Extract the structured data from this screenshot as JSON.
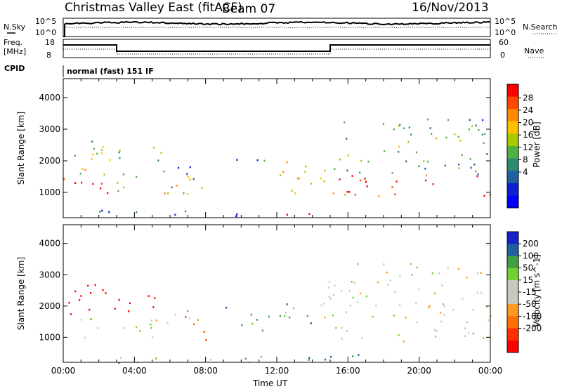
{
  "header": {
    "title": "Christmas Valley East (fitACF)",
    "beam": "Beam 07",
    "date": "16/Nov/2013"
  },
  "top_panels": {
    "noise_label": "N.Sky",
    "noise_ticks": [
      "10^5",
      "10^0"
    ],
    "noise_right_ticks": [
      "10^5",
      "10^0"
    ],
    "noise_right_label": "N.Search",
    "freq_label_1": "Freq.",
    "freq_label_2": "[MHz]",
    "freq_ticks": [
      "18",
      "8"
    ],
    "nave_ticks": [
      "60",
      "0"
    ],
    "nave_label": "Nave",
    "cpid_label": "CPID",
    "cpid_text": "normal (fast) 151 IF"
  },
  "chart_data": [
    {
      "type": "heatmap",
      "panel": "power",
      "ylabel": "Slant Range [km]",
      "ylim": [
        200,
        4600
      ],
      "y_ticks": [
        1000,
        2000,
        3000,
        4000
      ],
      "xlim": [
        0,
        24
      ],
      "colorbar": {
        "label": "Power [dB]",
        "ticks": [
          "28",
          "24",
          "20",
          "16",
          "12",
          "8",
          "4"
        ],
        "colors": [
          "#ff0000",
          "#ff4800",
          "#ff8c00",
          "#ffc000",
          "#a8c800",
          "#50b040",
          "#2e8b72",
          "#2060a0",
          "#1020d0",
          "#0000ff"
        ]
      },
      "regions": [
        {
          "t0": 0.0,
          "t1": 3.0,
          "r0": 850,
          "r1": 1500,
          "level": 0.95
        },
        {
          "t0": 0.0,
          "t1": 2.8,
          "r0": 1500,
          "r1": 2300,
          "level": 0.55
        },
        {
          "t0": 0.3,
          "t1": 5.8,
          "r0": 2000,
          "r1": 2700,
          "level": 0.45
        },
        {
          "t0": 3.0,
          "t1": 7.5,
          "r0": 900,
          "r1": 1600,
          "level": 0.6
        },
        {
          "t0": 5.5,
          "t1": 8.0,
          "r0": 1000,
          "r1": 1900,
          "level": 0.35
        },
        {
          "t0": 9.5,
          "t1": 11.5,
          "r0": 1600,
          "r1": 2100,
          "level": 0.3
        },
        {
          "t0": 11.5,
          "t1": 14.8,
          "r0": 800,
          "r1": 2000,
          "level": 0.6
        },
        {
          "t0": 12.5,
          "t1": 14.2,
          "r0": 200,
          "r1": 600,
          "level": 0.9
        },
        {
          "t0": 14.8,
          "t1": 24.0,
          "r0": 900,
          "r1": 1600,
          "level": 0.95
        },
        {
          "t0": 14.8,
          "t1": 24.0,
          "r0": 1600,
          "r1": 3400,
          "level": 0.4
        },
        {
          "t0": 2.0,
          "t1": 14.0,
          "r0": 250,
          "r1": 450,
          "level": 0.25
        }
      ]
    },
    {
      "type": "heatmap",
      "panel": "velocity",
      "ylabel": "Slant Range [km]",
      "xlabel": "Time UT",
      "ylim": [
        200,
        4600
      ],
      "y_ticks": [
        1000,
        2000,
        3000,
        4000
      ],
      "xlim": [
        0,
        24
      ],
      "x_ticks": [
        "00:00",
        "04:00",
        "08:00",
        "12:00",
        "16:00",
        "20:00",
        "00:00"
      ],
      "colorbar": {
        "label": "Velocity [m s^-1]",
        "ticks": [
          "200",
          "100",
          "50",
          "15",
          "-15",
          "-50",
          "-100",
          "-200"
        ],
        "colors": [
          "#1a20c8",
          "#2060a0",
          "#40a040",
          "#70d030",
          "#c8c8c0",
          "#c8c8c0",
          "#ff9a20",
          "#ff7000",
          "#ff3000",
          "#ff0000"
        ]
      },
      "regions": [
        {
          "t0": 0.0,
          "t1": 6.0,
          "r0": 1000,
          "r1": 1700,
          "level": 0.5
        },
        {
          "t0": 0.0,
          "t1": 2.5,
          "r0": 1700,
          "r1": 3000,
          "level": 0.05
        },
        {
          "t0": 2.5,
          "t1": 5.5,
          "r0": 1800,
          "r1": 2500,
          "level": 0.05
        },
        {
          "t0": 5.5,
          "t1": 8.0,
          "r0": 900,
          "r1": 1900,
          "level": 0.3
        },
        {
          "t0": 9.0,
          "t1": 14.0,
          "r0": 1200,
          "r1": 2100,
          "level": 0.75
        },
        {
          "t0": 14.0,
          "t1": 15.0,
          "r0": 1300,
          "r1": 2200,
          "level": 0.3
        },
        {
          "t0": 14.8,
          "t1": 24.0,
          "r0": 900,
          "r1": 2400,
          "level": 0.5
        },
        {
          "t0": 14.8,
          "t1": 24.0,
          "r0": 2400,
          "r1": 3400,
          "level": 0.5
        },
        {
          "t0": 3.0,
          "t1": 17.0,
          "r0": 200,
          "r1": 500,
          "level": 0.75
        }
      ]
    }
  ]
}
